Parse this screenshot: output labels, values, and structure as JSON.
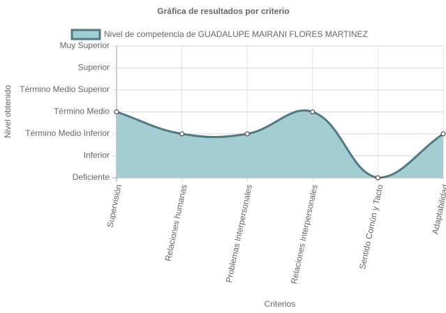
{
  "chart_data": {
    "type": "line",
    "title": "Gráfica de resultados por criterio",
    "x_label": "Criterios",
    "y_label": "Nivel obtenido",
    "categories": [
      "Supervisión",
      "Relaciones humanas",
      "Problemas Interpersonales",
      "Relaciones Interpersonales",
      "Sentido Común y Tacto",
      "Adaptabilidad"
    ],
    "series": [
      {
        "name": "Nivel de competencia de GUADALUPE MAIRANI FLORES MARTINEZ",
        "color": "#4e7a84",
        "fill": "#a3cdd0",
        "values": [
          4,
          3,
          3,
          4,
          1,
          3
        ]
      }
    ],
    "ylim": [
      1,
      7
    ],
    "yticks": [
      {
        "value": 1,
        "label": "Deficiente"
      },
      {
        "value": 2,
        "label": "Inferior"
      },
      {
        "value": 3,
        "label": "Término Medio Inferior"
      },
      {
        "value": 4,
        "label": "Término Medio"
      },
      {
        "value": 5,
        "label": "Término Medio Superior"
      },
      {
        "value": 6,
        "label": "Superior"
      },
      {
        "value": 7,
        "label": "Muy Superior"
      }
    ],
    "grid": true
  }
}
